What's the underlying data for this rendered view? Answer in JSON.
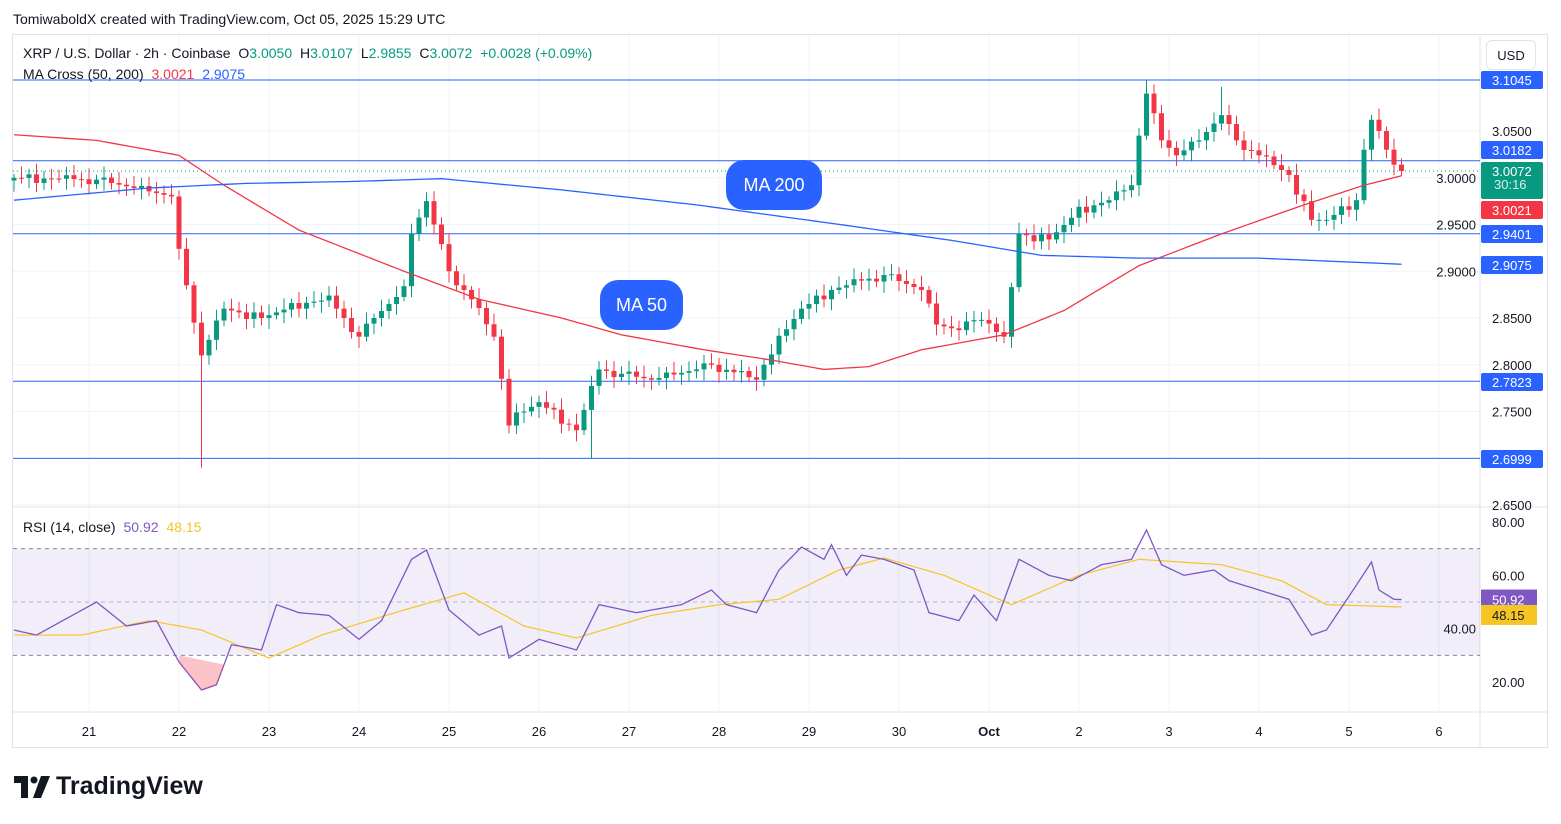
{
  "credit": "TomiwaboldX created with TradingView.com, Oct 05, 2025 15:29 UTC",
  "legend": {
    "symbol": "XRP / U.S. Dollar · 2h · Coinbase",
    "o_label": "O",
    "o": "3.0050",
    "h_label": "H",
    "h": "3.0107",
    "l_label": "L",
    "l": "2.9855",
    "c_label": "C",
    "c": "3.0072",
    "change": "+0.0028 (+0.09%)",
    "ma_name": "MA Cross (50, 200)",
    "ma50": "3.0021",
    "ma200": "2.9075",
    "rsi_name": "RSI (14, close)",
    "rsi": "50.92",
    "rsi_ma": "48.15"
  },
  "currency": "USD",
  "annotations": {
    "ma50": "MA 50",
    "ma200": "MA 200"
  },
  "countdown": "30:16",
  "logo": "TradingView",
  "colors": {
    "up": "#089981",
    "down": "#f23645",
    "ma50": "#f23645",
    "ma200": "#2962ff",
    "hline": "#2962ff",
    "rsi": "#7e57c2",
    "rsi_ma": "#f5c524"
  },
  "chart_data": [
    {
      "type": "candlestick",
      "title": "XRP / U.S. Dollar · 2h · Coinbase",
      "x_unit": "2h bar index (0 ≈ Sep 20 ~04:00 UTC)",
      "ylim": [
        2.64,
        3.13
      ],
      "y_ticks": [
        "3.0500",
        "3.0000",
        "2.9500",
        "2.9000",
        "2.8500",
        "2.8000",
        "2.7500",
        "2.6500"
      ],
      "x_ticks": [
        {
          "label": "21",
          "bar": 10
        },
        {
          "label": "22",
          "bar": 22
        },
        {
          "label": "23",
          "bar": 34
        },
        {
          "label": "24",
          "bar": 46
        },
        {
          "label": "25",
          "bar": 58
        },
        {
          "label": "26",
          "bar": 70
        },
        {
          "label": "27",
          "bar": 82
        },
        {
          "label": "28",
          "bar": 94
        },
        {
          "label": "29",
          "bar": 106
        },
        {
          "label": "30",
          "bar": 118
        },
        {
          "label": "Oct",
          "bar": 130
        },
        {
          "label": "2",
          "bar": 142
        },
        {
          "label": "3",
          "bar": 154
        },
        {
          "label": "4",
          "bar": 166
        },
        {
          "label": "5",
          "bar": 178
        },
        {
          "label": "6",
          "bar": 190
        }
      ],
      "close_anchors": [
        [
          0,
          3.0
        ],
        [
          11,
          2.998
        ],
        [
          21,
          2.98
        ],
        [
          22,
          2.92
        ],
        [
          24,
          2.85
        ],
        [
          25,
          2.81
        ],
        [
          28,
          2.86
        ],
        [
          33,
          2.85
        ],
        [
          38,
          2.865
        ],
        [
          42,
          2.87
        ],
        [
          46,
          2.83
        ],
        [
          48,
          2.85
        ],
        [
          52,
          2.88
        ],
        [
          53,
          2.94
        ],
        [
          55,
          2.975
        ],
        [
          58,
          2.9
        ],
        [
          61,
          2.87
        ],
        [
          64,
          2.83
        ],
        [
          66,
          2.74
        ],
        [
          70,
          2.76
        ],
        [
          75,
          2.73
        ],
        [
          78,
          2.795
        ],
        [
          85,
          2.784
        ],
        [
          91,
          2.795
        ],
        [
          93,
          2.8
        ],
        [
          99,
          2.784
        ],
        [
          101,
          2.816
        ],
        [
          105,
          2.86
        ],
        [
          109,
          2.88
        ],
        [
          113,
          2.89
        ],
        [
          116,
          2.896
        ],
        [
          121,
          2.88
        ],
        [
          123,
          2.843
        ],
        [
          126,
          2.837
        ],
        [
          129,
          2.853
        ],
        [
          132,
          2.826
        ],
        [
          134,
          2.94
        ],
        [
          138,
          2.934
        ],
        [
          142,
          2.965
        ],
        [
          146,
          2.976
        ],
        [
          149,
          2.992
        ],
        [
          150,
          3.05
        ],
        [
          151,
          3.09
        ],
        [
          153,
          3.04
        ],
        [
          155,
          3.024
        ],
        [
          158,
          3.04
        ],
        [
          161,
          3.067
        ],
        [
          163,
          3.04
        ],
        [
          166,
          3.024
        ],
        [
          170,
          3.003
        ],
        [
          173,
          2.955
        ],
        [
          175,
          2.955
        ],
        [
          179,
          2.976
        ],
        [
          180,
          3.03
        ],
        [
          181,
          3.062
        ],
        [
          183,
          3.03
        ],
        [
          184,
          3.014
        ],
        [
          185,
          3.0072
        ]
      ],
      "wick_extremes": [
        {
          "bar": 25,
          "low": 2.69
        },
        {
          "bar": 77,
          "low": 2.7
        },
        {
          "bar": 151,
          "high": 3.104
        },
        {
          "bar": 161,
          "high": 3.097
        }
      ],
      "series": [
        {
          "name": "MA 50",
          "value_last": 3.0021,
          "points": [
            [
              0,
              3.046
            ],
            [
              11,
              3.04
            ],
            [
              22,
              3.024
            ],
            [
              28,
              2.992
            ],
            [
              38,
              2.944
            ],
            [
              52,
              2.9
            ],
            [
              62,
              2.87
            ],
            [
              73,
              2.85
            ],
            [
              81,
              2.832
            ],
            [
              92,
              2.816
            ],
            [
              101,
              2.805
            ],
            [
              108,
              2.795
            ],
            [
              114,
              2.798
            ],
            [
              121,
              2.816
            ],
            [
              132,
              2.832
            ],
            [
              140,
              2.858
            ],
            [
              150,
              2.906
            ],
            [
              161,
              2.94
            ],
            [
              172,
              2.971
            ],
            [
              180,
              2.992
            ],
            [
              185,
              3.0021
            ]
          ]
        },
        {
          "name": "MA 200",
          "value_last": 2.9075,
          "points": [
            [
              0,
              2.976
            ],
            [
              18,
              2.989
            ],
            [
              31,
              2.994
            ],
            [
              45,
              2.996
            ],
            [
              57,
              2.999
            ],
            [
              73,
              2.987
            ],
            [
              91,
              2.971
            ],
            [
              111,
              2.949
            ],
            [
              125,
              2.933
            ],
            [
              137,
              2.917
            ],
            [
              150,
              2.914
            ],
            [
              166,
              2.914
            ],
            [
              185,
              2.9075
            ]
          ]
        }
      ],
      "horizontal_lines": [
        3.1045,
        3.0182,
        2.9401,
        2.7823,
        2.6999
      ],
      "price_labels": [
        "3.1045",
        "3.0182",
        "3.0072",
        "3.0021",
        "2.9401",
        "2.9075",
        "2.7823",
        "2.6999"
      ]
    },
    {
      "type": "line",
      "title": "RSI (14, close)",
      "ylim": [
        10,
        85
      ],
      "y_ticks": [
        "80.00",
        "60.00",
        "40.00",
        "20.00"
      ],
      "bands": {
        "upper": 70,
        "middle": 50,
        "lower": 30
      },
      "series": [
        {
          "name": "RSI",
          "value_last": 50.92,
          "points": [
            [
              0,
              39.5
            ],
            [
              3,
              37.6
            ],
            [
              11,
              50
            ],
            [
              15,
              41
            ],
            [
              19,
              43
            ],
            [
              22,
              27.5
            ],
            [
              25,
              17
            ],
            [
              27,
              19
            ],
            [
              29,
              34
            ],
            [
              33,
              32
            ],
            [
              35,
              49
            ],
            [
              38,
              46
            ],
            [
              42,
              45
            ],
            [
              46,
              36
            ],
            [
              49,
              43
            ],
            [
              53,
              66
            ],
            [
              55,
              69.5
            ],
            [
              58,
              47
            ],
            [
              62,
              37.6
            ],
            [
              65,
              41
            ],
            [
              66,
              29
            ],
            [
              70,
              36
            ],
            [
              75,
              32
            ],
            [
              78,
              49
            ],
            [
              83,
              46
            ],
            [
              89,
              49
            ],
            [
              93,
              54.5
            ],
            [
              95,
              49
            ],
            [
              99,
              46
            ],
            [
              102,
              62
            ],
            [
              105,
              70.6
            ],
            [
              108,
              66
            ],
            [
              109,
              71.5
            ],
            [
              111,
              60
            ],
            [
              113,
              67.6
            ],
            [
              116,
              66
            ],
            [
              120,
              62
            ],
            [
              122,
              46
            ],
            [
              126,
              43
            ],
            [
              128,
              52.6
            ],
            [
              131,
              43
            ],
            [
              134,
              66
            ],
            [
              138,
              60
            ],
            [
              141,
              58
            ],
            [
              145,
              64
            ],
            [
              149,
              66
            ],
            [
              151,
              77
            ],
            [
              153,
              64
            ],
            [
              156,
              60
            ],
            [
              160,
              62
            ],
            [
              162,
              58
            ],
            [
              166,
              54.5
            ],
            [
              170,
              51
            ],
            [
              173,
              37.6
            ],
            [
              175,
              39.5
            ],
            [
              179,
              56.4
            ],
            [
              181,
              65
            ],
            [
              182,
              54.5
            ],
            [
              184,
              51
            ],
            [
              185,
              50.92
            ]
          ]
        },
        {
          "name": "RSI MA",
          "value_last": 48.15,
          "points": [
            [
              0,
              37.6
            ],
            [
              9,
              37.6
            ],
            [
              18,
              43
            ],
            [
              25,
              39.5
            ],
            [
              34,
              29
            ],
            [
              41,
              37.6
            ],
            [
              52,
              47
            ],
            [
              60,
              53.4
            ],
            [
              68,
              41
            ],
            [
              75,
              36.5
            ],
            [
              85,
              45
            ],
            [
              94,
              49
            ],
            [
              102,
              51
            ],
            [
              110,
              62
            ],
            [
              116,
              66.5
            ],
            [
              124,
              60
            ],
            [
              133,
              49
            ],
            [
              142,
              60
            ],
            [
              150,
              66
            ],
            [
              161,
              64
            ],
            [
              169,
              58
            ],
            [
              175,
              49
            ],
            [
              185,
              48.15
            ]
          ]
        }
      ]
    }
  ]
}
